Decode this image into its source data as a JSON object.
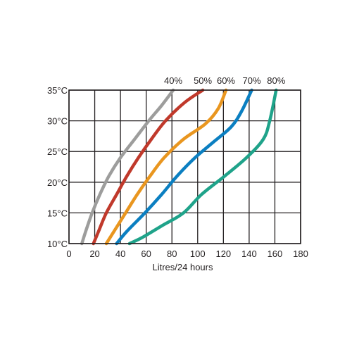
{
  "chart_data": {
    "type": "line",
    "title": "",
    "xlabel": "Litres/24 hours",
    "ylabel": "",
    "xlim": [
      0,
      180
    ],
    "ylim": [
      10,
      35
    ],
    "x_ticks": [
      0,
      20,
      40,
      60,
      80,
      100,
      120,
      140,
      160,
      180
    ],
    "x_tick_labels": [
      "0",
      "20",
      "40",
      "60",
      "80",
      "100",
      "120",
      "140",
      "160",
      "180"
    ],
    "y_ticks": [
      10,
      15,
      20,
      25,
      30,
      35
    ],
    "y_tick_labels": [
      "10°C",
      "15°C",
      "20°C",
      "25°C",
      "30°C",
      "35°C"
    ],
    "grid": true,
    "series": [
      {
        "name": "40%",
        "color": "#9d9d9c",
        "points": [
          [
            10,
            10
          ],
          [
            13,
            12
          ],
          [
            18,
            15
          ],
          [
            24,
            18
          ],
          [
            31,
            21
          ],
          [
            40,
            24
          ],
          [
            51,
            27
          ],
          [
            62,
            30
          ],
          [
            72,
            32.5
          ],
          [
            81,
            35
          ]
        ]
      },
      {
        "name": "50%",
        "color": "#c0392b",
        "points": [
          [
            19,
            10
          ],
          [
            23,
            12
          ],
          [
            29,
            15
          ],
          [
            37,
            18
          ],
          [
            45,
            21
          ],
          [
            54,
            24
          ],
          [
            64,
            27
          ],
          [
            75,
            30
          ],
          [
            90,
            33
          ],
          [
            104,
            35
          ]
        ]
      },
      {
        "name": "60%",
        "color": "#e9961f",
        "points": [
          [
            29,
            10
          ],
          [
            35,
            12
          ],
          [
            44,
            15
          ],
          [
            53,
            18
          ],
          [
            63,
            21
          ],
          [
            74,
            24
          ],
          [
            89,
            27
          ],
          [
            106,
            29.5
          ],
          [
            116,
            32
          ],
          [
            122,
            35
          ]
        ]
      },
      {
        "name": "70%",
        "color": "#0b7fc1",
        "points": [
          [
            37,
            10
          ],
          [
            45,
            12
          ],
          [
            59,
            15
          ],
          [
            72,
            18
          ],
          [
            84,
            21
          ],
          [
            98,
            24
          ],
          [
            112,
            26.5
          ],
          [
            126,
            29
          ],
          [
            134,
            31.5
          ],
          [
            142,
            35
          ]
        ]
      },
      {
        "name": "80%",
        "color": "#1fa38a",
        "points": [
          [
            47,
            10
          ],
          [
            57,
            11
          ],
          [
            73,
            13
          ],
          [
            89,
            15
          ],
          [
            103,
            18
          ],
          [
            121,
            21
          ],
          [
            138,
            24
          ],
          [
            151,
            27
          ],
          [
            156,
            30
          ],
          [
            161,
            35
          ]
        ]
      }
    ]
  }
}
